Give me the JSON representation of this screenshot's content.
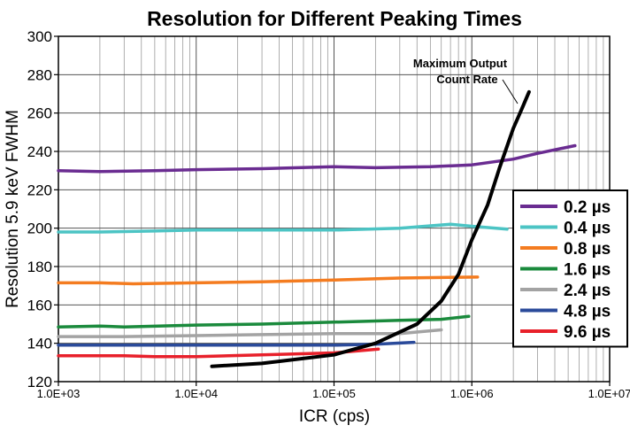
{
  "chart_data": {
    "type": "line",
    "title": "Resolution for Different Peaking Times",
    "xlabel": "ICR (cps)",
    "ylabel": "Resolution 5.9 keV FWHM",
    "x_scale": "log",
    "xlim": [
      1000,
      10000000
    ],
    "ylim": [
      120,
      300
    ],
    "x_ticks": [
      1000,
      10000,
      100000,
      1000000,
      10000000
    ],
    "x_tick_labels": [
      "1.0E+03",
      "1.0E+04",
      "1.0E+05",
      "1.0E+06",
      "1.0E+07"
    ],
    "y_ticks": [
      120,
      140,
      160,
      180,
      200,
      220,
      240,
      260,
      280,
      300
    ],
    "grid": true,
    "legend_position": "bottom-right",
    "series": [
      {
        "name": "0.2 µs",
        "color": "#6a2c91",
        "points": [
          [
            1000,
            230
          ],
          [
            2000,
            229.5
          ],
          [
            5000,
            230
          ],
          [
            10000,
            230.5
          ],
          [
            30000,
            231
          ],
          [
            100000,
            232
          ],
          [
            200000,
            231.5
          ],
          [
            500000,
            232
          ],
          [
            1000000,
            233
          ],
          [
            2000000,
            236
          ],
          [
            3000000,
            239
          ],
          [
            5600000,
            243
          ]
        ]
      },
      {
        "name": "0.4 µs",
        "color": "#4cc4c4",
        "points": [
          [
            1000,
            198
          ],
          [
            2000,
            198
          ],
          [
            5000,
            198.5
          ],
          [
            10000,
            199
          ],
          [
            30000,
            199
          ],
          [
            100000,
            199
          ],
          [
            300000,
            200
          ],
          [
            700000,
            202
          ],
          [
            1000000,
            201
          ],
          [
            1800000,
            199.5
          ]
        ]
      },
      {
        "name": "0.8 µs",
        "color": "#f47c20",
        "points": [
          [
            1000,
            171.5
          ],
          [
            2000,
            171.5
          ],
          [
            3500,
            171
          ],
          [
            10000,
            171.5
          ],
          [
            30000,
            172
          ],
          [
            100000,
            173
          ],
          [
            300000,
            174
          ],
          [
            1100000,
            174.5
          ]
        ]
      },
      {
        "name": "1.6 µs",
        "color": "#1a8a3c",
        "points": [
          [
            1000,
            148.5
          ],
          [
            2000,
            149
          ],
          [
            3000,
            148.5
          ],
          [
            10000,
            149.5
          ],
          [
            30000,
            150
          ],
          [
            100000,
            151
          ],
          [
            300000,
            152
          ],
          [
            600000,
            152.5
          ],
          [
            950000,
            154
          ]
        ]
      },
      {
        "name": "2.4 µs",
        "color": "#a3a3a3",
        "points": [
          [
            1000,
            143.5
          ],
          [
            3000,
            143.5
          ],
          [
            10000,
            144
          ],
          [
            30000,
            144.5
          ],
          [
            100000,
            145
          ],
          [
            300000,
            145
          ],
          [
            600000,
            147
          ]
        ]
      },
      {
        "name": "4.8 µs",
        "color": "#2a4a9a",
        "points": [
          [
            1000,
            139
          ],
          [
            3000,
            139
          ],
          [
            10000,
            139
          ],
          [
            30000,
            139
          ],
          [
            100000,
            139
          ],
          [
            200000,
            139.5
          ],
          [
            380000,
            140.5
          ]
        ]
      },
      {
        "name": "9.6 µs",
        "color": "#e8202a",
        "points": [
          [
            1000,
            133.5
          ],
          [
            3000,
            133.5
          ],
          [
            5000,
            133
          ],
          [
            10000,
            133
          ],
          [
            30000,
            134
          ],
          [
            100000,
            135
          ],
          [
            210000,
            137
          ]
        ]
      }
    ],
    "max_count_rate_curve": {
      "color": "#000000",
      "points": [
        [
          13000,
          128
        ],
        [
          30000,
          129.5
        ],
        [
          100000,
          134
        ],
        [
          200000,
          140
        ],
        [
          400000,
          150
        ],
        [
          600000,
          162
        ],
        [
          800000,
          176
        ],
        [
          1000000,
          194
        ],
        [
          1300000,
          212
        ],
        [
          1600000,
          232
        ],
        [
          2000000,
          252
        ],
        [
          2300000,
          262
        ],
        [
          2600000,
          271
        ]
      ]
    },
    "annotations": [
      {
        "text": "Maximum Output",
        "line": 1
      },
      {
        "text": "Count Rate",
        "line": 2
      }
    ]
  }
}
